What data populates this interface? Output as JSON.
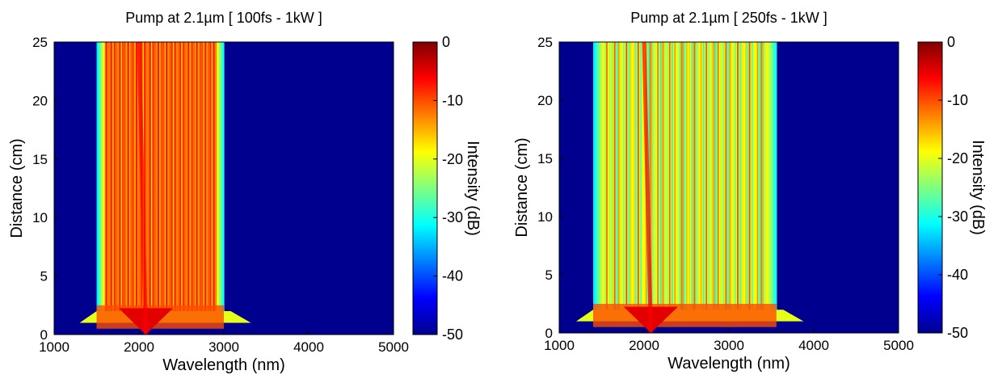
{
  "chart_data": [
    {
      "type": "heatmap",
      "title": "Pump at 2.1µm [ 100fs - 1kW ]",
      "x_label": "Wavelength (nm)",
      "y_label": "Distance (cm)",
      "xlim": [
        1000,
        5000
      ],
      "xticks": [
        1000,
        2000,
        3000,
        4000,
        5000
      ],
      "ylim": [
        0,
        25
      ],
      "yticks": [
        0,
        5,
        10,
        15,
        20,
        25
      ],
      "colorbar": {
        "label": "Intensity (dB)",
        "lim": [
          -50,
          0
        ],
        "ticks": [
          0,
          -10,
          -20,
          -30,
          -40,
          -50
        ]
      }
    },
    {
      "type": "heatmap",
      "title": "Pump at 2.1µm [ 250fs - 1kW ]",
      "x_label": "Wavelength (nm)",
      "y_label": "Distance (cm)",
      "xlim": [
        1000,
        5000
      ],
      "xticks": [
        1000,
        2000,
        3000,
        4000,
        5000
      ],
      "ylim": [
        0,
        25
      ],
      "yticks": [
        0,
        5,
        10,
        15,
        20,
        25
      ],
      "colorbar": {
        "label": "Intensity (dB)",
        "lim": [
          -50,
          0
        ],
        "ticks": [
          0,
          -10,
          -20,
          -30,
          -40,
          -50
        ]
      }
    }
  ]
}
